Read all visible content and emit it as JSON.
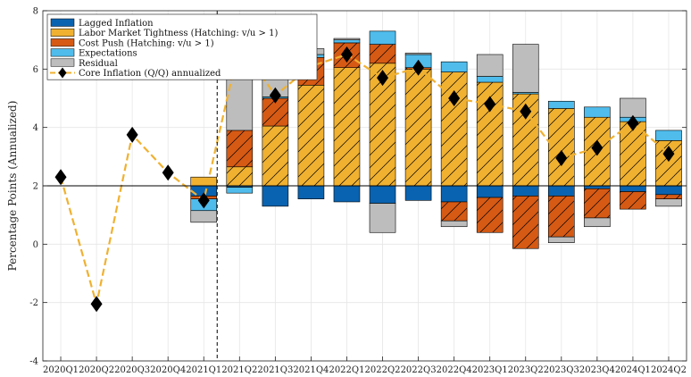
{
  "chart_data": {
    "type": "bar",
    "ylabel": "Percentage Points (Annualized)",
    "ylim": [
      -4,
      8
    ],
    "yticks": [
      -4,
      -2,
      0,
      2,
      4,
      6,
      8
    ],
    "baseline": 2,
    "vline_after_category": "2021Q1",
    "grid": true,
    "legend_position": "top-left",
    "categories": [
      "2020Q1",
      "2020Q2",
      "2020Q3",
      "2020Q4",
      "2021Q1",
      "2021Q2",
      "2021Q3",
      "2021Q4",
      "2022Q1",
      "2022Q2",
      "2022Q3",
      "2022Q4",
      "2023Q1",
      "2023Q2",
      "2023Q3",
      "2023Q4",
      "2024Q1",
      "2024Q2"
    ],
    "series": [
      {
        "name": "Lagged Inflation",
        "color": "#0a63b0",
        "values": [
          null,
          null,
          null,
          null,
          -0.35,
          -0.05,
          -0.7,
          -0.45,
          -0.55,
          -0.6,
          -0.5,
          -0.55,
          -0.4,
          -0.35,
          -0.35,
          -0.1,
          -0.2,
          -0.3
        ]
      },
      {
        "name": "Labor Market Tightness (Hatching: v/u > 1)",
        "color": "#f0b131",
        "values": [
          null,
          null,
          null,
          null,
          0.3,
          0.65,
          2.05,
          3.45,
          4.05,
          4.2,
          4.0,
          3.9,
          3.55,
          3.15,
          2.65,
          2.35,
          2.2,
          1.55
        ]
      },
      {
        "name": "Cost Push (Hatching: v/u > 1)",
        "color": "#d65a14",
        "values": [
          null,
          null,
          null,
          null,
          -0.1,
          1.25,
          0.95,
          0.95,
          0.85,
          0.65,
          0.05,
          -0.65,
          -1.2,
          -1.8,
          -1.4,
          -1.0,
          -0.6,
          -0.15
        ]
      },
      {
        "name": "Expectations",
        "color": "#4fbcec",
        "values": [
          null,
          null,
          null,
          null,
          -0.4,
          -0.2,
          0.05,
          0.1,
          0.1,
          0.45,
          0.45,
          0.35,
          0.2,
          0.05,
          0.25,
          0.35,
          0.15,
          0.35
        ]
      },
      {
        "name": "Residual",
        "color": "#bdbdbd",
        "values": [
          null,
          null,
          null,
          null,
          -0.4,
          3.15,
          0.8,
          0.2,
          0.05,
          -1.0,
          0.05,
          -0.2,
          0.75,
          1.65,
          -0.2,
          -0.3,
          0.65,
          -0.25
        ]
      }
    ],
    "hatched": [
      false,
      false,
      false,
      false,
      false,
      true,
      true,
      true,
      true,
      true,
      true,
      true,
      true,
      true,
      true,
      true,
      true,
      true
    ],
    "line": {
      "name": "Core Inflation (Q/Q) annualized",
      "color": "#f0b131",
      "values": [
        2.3,
        -2.05,
        3.75,
        2.45,
        1.5,
        6.85,
        5.1,
        6.1,
        6.5,
        5.7,
        6.05,
        5.0,
        4.8,
        4.55,
        2.95,
        3.3,
        4.15,
        3.1
      ]
    }
  }
}
